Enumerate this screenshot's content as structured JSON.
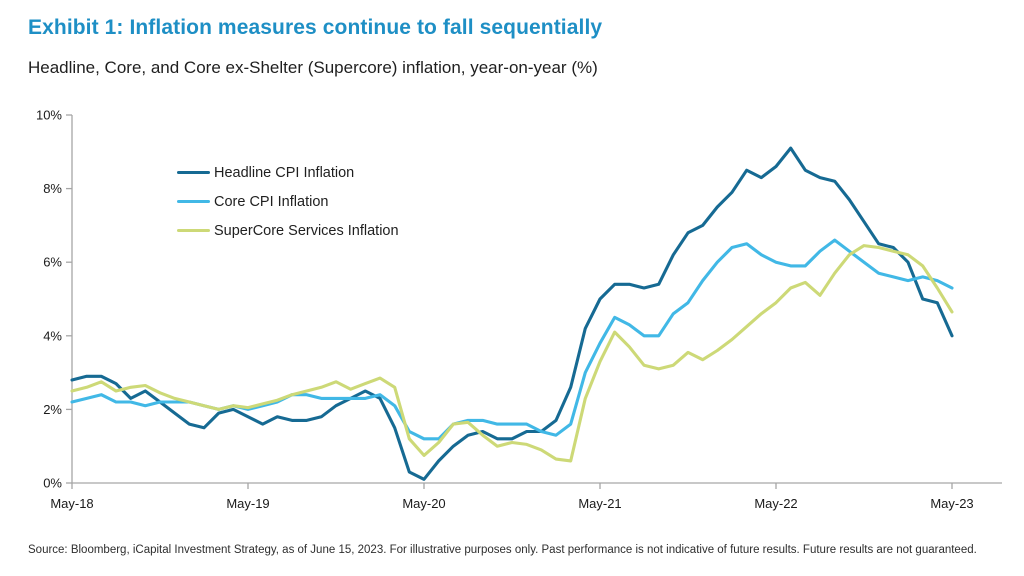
{
  "header": {
    "title": "Exhibit 1: Inflation measures continue to fall sequentially",
    "subtitle": "Headline, Core, and Core ex-Shelter (Supercore) inflation, year-on-year (%)"
  },
  "chart_data": {
    "type": "line",
    "x_unit": "month",
    "x_start": "May-18",
    "x_end": "May-23",
    "x_tick_labels": [
      "May-18",
      "May-19",
      "May-20",
      "May-21",
      "May-22",
      "May-23"
    ],
    "y_tick_labels": [
      "0%",
      "2%",
      "4%",
      "6%",
      "8%",
      "10%"
    ],
    "ylim": [
      0,
      10
    ],
    "grid": false,
    "legend_position": "inside-upper-left",
    "axis_color": "#a6a6a6",
    "series": [
      {
        "name": "Headline CPI Inflation",
        "color": "#166a93",
        "values": [
          2.8,
          2.9,
          2.9,
          2.7,
          2.3,
          2.5,
          2.2,
          1.9,
          1.6,
          1.5,
          1.9,
          2.0,
          1.8,
          1.6,
          1.8,
          1.7,
          1.7,
          1.8,
          2.1,
          2.3,
          2.5,
          2.3,
          1.5,
          0.3,
          0.1,
          0.6,
          1.0,
          1.3,
          1.4,
          1.2,
          1.2,
          1.4,
          1.4,
          1.7,
          2.6,
          4.2,
          5.0,
          5.4,
          5.4,
          5.3,
          5.4,
          6.2,
          6.8,
          7.0,
          7.5,
          7.9,
          8.5,
          8.3,
          8.6,
          9.1,
          8.5,
          8.3,
          8.2,
          7.7,
          7.1,
          6.5,
          6.4,
          6.0,
          5.0,
          4.9,
          4.0
        ]
      },
      {
        "name": "Core CPI Inflation",
        "color": "#41b8e6",
        "values": [
          2.2,
          2.3,
          2.4,
          2.2,
          2.2,
          2.1,
          2.2,
          2.2,
          2.2,
          2.1,
          2.0,
          2.1,
          2.0,
          2.1,
          2.2,
          2.4,
          2.4,
          2.3,
          2.3,
          2.3,
          2.3,
          2.4,
          2.1,
          1.4,
          1.2,
          1.2,
          1.6,
          1.7,
          1.7,
          1.6,
          1.6,
          1.6,
          1.4,
          1.3,
          1.6,
          3.0,
          3.8,
          4.5,
          4.3,
          4.0,
          4.0,
          4.6,
          4.9,
          5.5,
          6.0,
          6.4,
          6.5,
          6.2,
          6.0,
          5.9,
          5.9,
          6.3,
          6.6,
          6.3,
          6.0,
          5.7,
          5.6,
          5.5,
          5.6,
          5.5,
          5.3
        ]
      },
      {
        "name": "SuperCore Services Inflation",
        "color": "#cdd977",
        "values": [
          2.5,
          2.6,
          2.75,
          2.5,
          2.6,
          2.65,
          2.45,
          2.3,
          2.2,
          2.1,
          2.0,
          2.1,
          2.05,
          2.15,
          2.25,
          2.4,
          2.5,
          2.6,
          2.75,
          2.55,
          2.7,
          2.85,
          2.6,
          1.2,
          0.75,
          1.1,
          1.6,
          1.65,
          1.3,
          1.0,
          1.1,
          1.05,
          0.9,
          0.65,
          0.6,
          2.3,
          3.3,
          4.1,
          3.7,
          3.2,
          3.1,
          3.2,
          3.55,
          3.35,
          3.6,
          3.9,
          4.25,
          4.6,
          4.9,
          5.3,
          5.45,
          5.1,
          5.7,
          6.2,
          6.45,
          6.4,
          6.3,
          6.2,
          5.9,
          5.3,
          4.65
        ]
      }
    ]
  },
  "footer": {
    "source": "Source: Bloomberg, iCapital Investment Strategy, as of June 15, 2023. For illustrative purposes only. Past performance is not indicative of future results. Future results are not guaranteed."
  }
}
